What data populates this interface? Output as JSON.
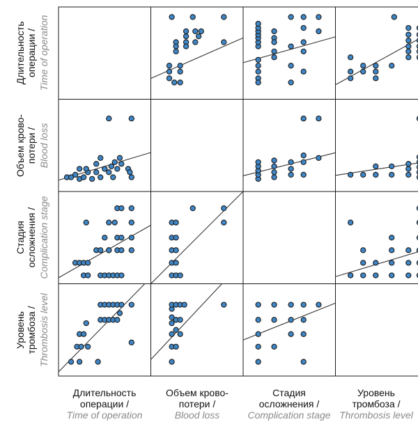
{
  "chart_data": {
    "type": "scatter",
    "variables": [
      {
        "key": "time",
        "name_ru": [
          "Длительность",
          "операции /"
        ],
        "name_en": "Time of operation"
      },
      {
        "key": "blood",
        "name_ru": [
          "Объем крово-",
          "потери /"
        ],
        "name_en": "Blood loss"
      },
      {
        "key": "stage",
        "name_ru": [
          "Стадия",
          "осложнения /"
        ],
        "name_en": "Complication stage"
      },
      {
        "key": "level",
        "name_ru": [
          "Уровень",
          "тромбоза /"
        ],
        "name_en": "Thrombosis level"
      }
    ],
    "pairs": [
      {
        "x": "blood",
        "y": "time",
        "trend": [
          [
            0,
            0.22
          ],
          [
            1,
            0.66
          ]
        ],
        "points": [
          [
            0.2,
            0.93
          ],
          [
            0.45,
            0.93
          ],
          [
            0.82,
            0.93
          ],
          [
            0.37,
            0.76
          ],
          [
            0.48,
            0.76
          ],
          [
            0.55,
            0.76
          ],
          [
            0.37,
            0.7
          ],
          [
            0.52,
            0.7
          ],
          [
            0.25,
            0.63
          ],
          [
            0.37,
            0.63
          ],
          [
            0.48,
            0.63
          ],
          [
            0.25,
            0.58
          ],
          [
            0.37,
            0.58
          ],
          [
            0.25,
            0.52
          ],
          [
            0.82,
            0.63
          ],
          [
            0.17,
            0.35
          ],
          [
            0.3,
            0.35
          ],
          [
            0.17,
            0.28
          ],
          [
            0.3,
            0.28
          ],
          [
            0.17,
            0.2
          ],
          [
            0.23,
            0.15
          ],
          [
            0.3,
            0.15
          ]
        ]
      },
      {
        "x": "stage",
        "y": "time",
        "trend": [
          [
            0,
            0.4
          ],
          [
            1,
            0.68
          ]
        ],
        "points": [
          [
            0.13,
            0.58
          ],
          [
            0.13,
            0.63
          ],
          [
            0.13,
            0.68
          ],
          [
            0.13,
            0.72
          ],
          [
            0.13,
            0.76
          ],
          [
            0.13,
            0.8
          ],
          [
            0.13,
            0.85
          ],
          [
            0.13,
            0.42
          ],
          [
            0.13,
            0.35
          ],
          [
            0.13,
            0.28
          ],
          [
            0.13,
            0.2
          ],
          [
            0.13,
            0.15
          ],
          [
            0.32,
            0.76
          ],
          [
            0.32,
            0.68
          ],
          [
            0.32,
            0.63
          ],
          [
            0.32,
            0.52
          ],
          [
            0.32,
            0.45
          ],
          [
            0.52,
            0.93
          ],
          [
            0.52,
            0.58
          ],
          [
            0.52,
            0.35
          ],
          [
            0.52,
            0.15
          ],
          [
            0.67,
            0.93
          ],
          [
            0.67,
            0.8
          ],
          [
            0.67,
            0.63
          ],
          [
            0.67,
            0.52
          ],
          [
            0.85,
            0.93
          ],
          [
            0.85,
            0.76
          ],
          [
            0.67,
            0.28
          ]
        ]
      },
      {
        "x": "level",
        "y": "time",
        "trend": [
          [
            0,
            0.15
          ],
          [
            1,
            0.7
          ]
        ],
        "points": [
          [
            0.13,
            0.45
          ],
          [
            0.13,
            0.28
          ],
          [
            0.13,
            0.2
          ],
          [
            0.28,
            0.35
          ],
          [
            0.28,
            0.28
          ],
          [
            0.43,
            0.35
          ],
          [
            0.43,
            0.28
          ],
          [
            0.43,
            0.2
          ],
          [
            0.62,
            0.35
          ],
          [
            0.65,
            0.93
          ],
          [
            0.82,
            0.8
          ],
          [
            0.82,
            0.72
          ],
          [
            0.82,
            0.65
          ],
          [
            0.82,
            0.58
          ],
          [
            0.82,
            0.52
          ],
          [
            0.82,
            0.45
          ],
          [
            0.95,
            0.8
          ],
          [
            0.95,
            0.72
          ],
          [
            0.95,
            0.65
          ],
          [
            0.95,
            0.58
          ],
          [
            0.95,
            0.52
          ],
          [
            0.95,
            0.45
          ]
        ]
      },
      {
        "x": "time",
        "y": "blood",
        "trend": [
          [
            0,
            0.1
          ],
          [
            1,
            0.4
          ]
        ],
        "points": [
          [
            0.55,
            0.82
          ],
          [
            0.82,
            0.82
          ],
          [
            0.05,
            0.12
          ],
          [
            0.1,
            0.12
          ],
          [
            0.15,
            0.15
          ],
          [
            0.2,
            0.1
          ],
          [
            0.25,
            0.12
          ],
          [
            0.3,
            0.18
          ],
          [
            0.35,
            0.1
          ],
          [
            0.2,
            0.22
          ],
          [
            0.28,
            0.22
          ],
          [
            0.4,
            0.18
          ],
          [
            0.45,
            0.12
          ],
          [
            0.5,
            0.22
          ],
          [
            0.55,
            0.18
          ],
          [
            0.58,
            0.25
          ],
          [
            0.6,
            0.12
          ],
          [
            0.62,
            0.3
          ],
          [
            0.65,
            0.22
          ],
          [
            0.68,
            0.35
          ],
          [
            0.7,
            0.28
          ],
          [
            0.78,
            0.22
          ],
          [
            0.8,
            0.18
          ],
          [
            0.82,
            0.12
          ],
          [
            0.4,
            0.28
          ],
          [
            0.45,
            0.35
          ]
        ]
      },
      {
        "x": "stage",
        "y": "blood",
        "trend": [
          [
            0,
            0.15
          ],
          [
            1,
            0.4
          ]
        ],
        "points": [
          [
            0.13,
            0.1
          ],
          [
            0.13,
            0.15
          ],
          [
            0.13,
            0.2
          ],
          [
            0.13,
            0.25
          ],
          [
            0.13,
            0.3
          ],
          [
            0.32,
            0.12
          ],
          [
            0.32,
            0.18
          ],
          [
            0.32,
            0.25
          ],
          [
            0.32,
            0.32
          ],
          [
            0.52,
            0.15
          ],
          [
            0.52,
            0.22
          ],
          [
            0.52,
            0.3
          ],
          [
            0.67,
            0.15
          ],
          [
            0.67,
            0.3
          ],
          [
            0.67,
            0.82
          ],
          [
            0.67,
            0.38
          ],
          [
            0.85,
            0.82
          ],
          [
            0.85,
            0.35
          ]
        ]
      },
      {
        "x": "level",
        "y": "blood",
        "trend": [
          [
            0,
            0.15
          ],
          [
            1,
            0.3
          ]
        ],
        "points": [
          [
            0.13,
            0.15
          ],
          [
            0.28,
            0.15
          ],
          [
            0.43,
            0.15
          ],
          [
            0.43,
            0.25
          ],
          [
            0.62,
            0.15
          ],
          [
            0.62,
            0.25
          ],
          [
            0.82,
            0.15
          ],
          [
            0.82,
            0.22
          ],
          [
            0.82,
            0.28
          ],
          [
            0.95,
            0.12
          ],
          [
            0.95,
            0.18
          ],
          [
            0.95,
            0.24
          ],
          [
            0.95,
            0.3
          ],
          [
            0.95,
            0.36
          ],
          [
            0.95,
            0.82
          ]
        ]
      },
      {
        "x": "time",
        "y": "stage",
        "trend": [
          [
            0,
            0.05
          ],
          [
            1,
            0.62
          ]
        ],
        "points": [
          [
            0.28,
            0.68
          ],
          [
            0.55,
            0.68
          ],
          [
            0.62,
            0.68
          ],
          [
            0.82,
            0.68
          ],
          [
            0.65,
            0.85
          ],
          [
            0.7,
            0.85
          ],
          [
            0.82,
            0.85
          ],
          [
            0.25,
            0.05
          ],
          [
            0.3,
            0.05
          ],
          [
            0.45,
            0.05
          ],
          [
            0.5,
            0.05
          ],
          [
            0.55,
            0.05
          ],
          [
            0.6,
            0.05
          ],
          [
            0.65,
            0.05
          ],
          [
            0.7,
            0.05
          ],
          [
            0.15,
            0.2
          ],
          [
            0.2,
            0.2
          ],
          [
            0.25,
            0.2
          ],
          [
            0.3,
            0.2
          ],
          [
            0.4,
            0.35
          ],
          [
            0.45,
            0.35
          ],
          [
            0.55,
            0.35
          ],
          [
            0.65,
            0.35
          ],
          [
            0.7,
            0.35
          ],
          [
            0.82,
            0.35
          ],
          [
            0.65,
            0.5
          ],
          [
            0.7,
            0.5
          ],
          [
            0.82,
            0.5
          ],
          [
            0.5,
            0.5
          ],
          [
            0.55,
            0.35
          ]
        ]
      },
      {
        "x": "blood",
        "y": "stage",
        "trend": [
          [
            0,
            0.0
          ],
          [
            1,
            1.0
          ]
        ],
        "points": [
          [
            0.2,
            0.05
          ],
          [
            0.25,
            0.05
          ],
          [
            0.3,
            0.05
          ],
          [
            0.2,
            0.2
          ],
          [
            0.25,
            0.2
          ],
          [
            0.2,
            0.35
          ],
          [
            0.25,
            0.35
          ],
          [
            0.2,
            0.5
          ],
          [
            0.25,
            0.5
          ],
          [
            0.2,
            0.68
          ],
          [
            0.25,
            0.68
          ],
          [
            0.45,
            0.85
          ],
          [
            0.82,
            0.85
          ],
          [
            0.82,
            0.68
          ]
        ]
      },
      {
        "x": "level",
        "y": "stage",
        "trend": [
          [
            0,
            0.05
          ],
          [
            1,
            0.35
          ]
        ],
        "points": [
          [
            0.13,
            0.05
          ],
          [
            0.28,
            0.05
          ],
          [
            0.43,
            0.05
          ],
          [
            0.62,
            0.05
          ],
          [
            0.82,
            0.05
          ],
          [
            0.95,
            0.05
          ],
          [
            0.28,
            0.2
          ],
          [
            0.43,
            0.2
          ],
          [
            0.62,
            0.2
          ],
          [
            0.82,
            0.2
          ],
          [
            0.95,
            0.2
          ],
          [
            0.28,
            0.35
          ],
          [
            0.62,
            0.35
          ],
          [
            0.82,
            0.35
          ],
          [
            0.95,
            0.35
          ],
          [
            0.13,
            0.68
          ],
          [
            0.95,
            0.68
          ],
          [
            0.95,
            0.5
          ],
          [
            0.62,
            0.5
          ],
          [
            0.95,
            0.85
          ]
        ]
      },
      {
        "x": "time",
        "y": "level",
        "trend": [
          [
            0,
            0.05
          ],
          [
            0.88,
            0.95
          ]
        ],
        "points": [
          [
            0.17,
            0.3
          ],
          [
            0.22,
            0.3
          ],
          [
            0.3,
            0.3
          ],
          [
            0.2,
            0.45
          ],
          [
            0.25,
            0.45
          ],
          [
            0.28,
            0.58
          ],
          [
            0.1,
            0.12
          ],
          [
            0.2,
            0.12
          ],
          [
            0.42,
            0.12
          ],
          [
            0.45,
            0.8
          ],
          [
            0.5,
            0.8
          ],
          [
            0.55,
            0.8
          ],
          [
            0.6,
            0.8
          ],
          [
            0.65,
            0.8
          ],
          [
            0.7,
            0.8
          ],
          [
            0.82,
            0.8
          ],
          [
            0.45,
            0.62
          ],
          [
            0.5,
            0.62
          ],
          [
            0.55,
            0.62
          ],
          [
            0.6,
            0.62
          ],
          [
            0.65,
            0.62
          ],
          [
            0.82,
            0.35
          ],
          [
            0.68,
            0.7
          ]
        ]
      },
      {
        "x": "blood",
        "y": "level",
        "trend": [
          [
            0,
            0.2
          ],
          [
            0.75,
            1.0
          ]
        ],
        "points": [
          [
            0.2,
            0.12
          ],
          [
            0.2,
            0.3
          ],
          [
            0.2,
            0.45
          ],
          [
            0.2,
            0.58
          ],
          [
            0.2,
            0.65
          ],
          [
            0.2,
            0.75
          ],
          [
            0.2,
            0.8
          ],
          [
            0.25,
            0.8
          ],
          [
            0.3,
            0.8
          ],
          [
            0.25,
            0.62
          ],
          [
            0.3,
            0.62
          ],
          [
            0.25,
            0.5
          ],
          [
            0.3,
            0.45
          ],
          [
            0.25,
            0.3
          ],
          [
            0.35,
            0.8
          ],
          [
            0.82,
            0.8
          ]
        ]
      },
      {
        "x": "stage",
        "y": "level",
        "trend": [
          [
            0,
            0.4
          ],
          [
            1,
            0.8
          ]
        ],
        "points": [
          [
            0.13,
            0.8
          ],
          [
            0.32,
            0.8
          ],
          [
            0.52,
            0.8
          ],
          [
            0.67,
            0.8
          ],
          [
            0.85,
            0.8
          ],
          [
            0.13,
            0.62
          ],
          [
            0.32,
            0.62
          ],
          [
            0.52,
            0.62
          ],
          [
            0.67,
            0.62
          ],
          [
            0.13,
            0.45
          ],
          [
            0.52,
            0.45
          ],
          [
            0.67,
            0.45
          ],
          [
            0.13,
            0.3
          ],
          [
            0.32,
            0.3
          ],
          [
            0.13,
            0.12
          ],
          [
            0.67,
            0.12
          ]
        ]
      }
    ]
  }
}
